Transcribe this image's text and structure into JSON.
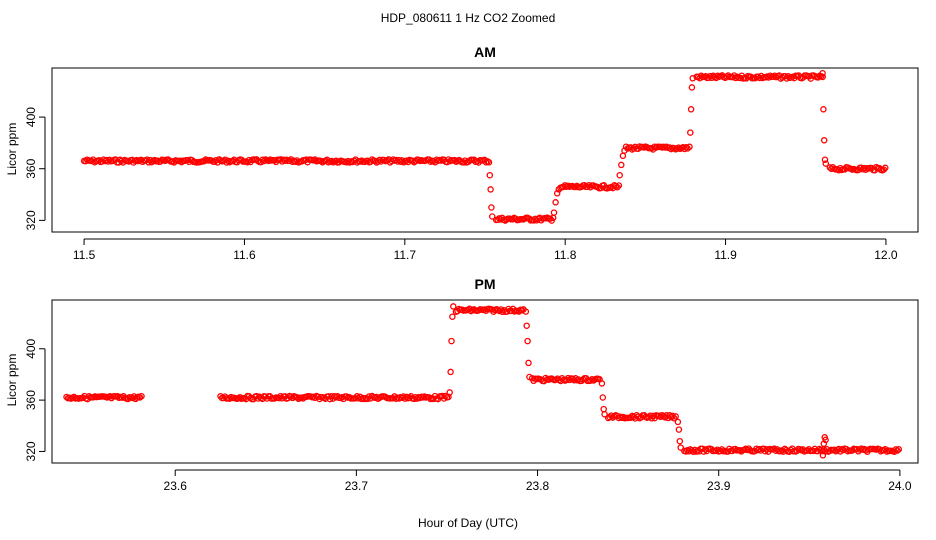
{
  "figure": {
    "title": "HDP_080611  1 Hz CO2 Zoomed",
    "xlabel": "Hour of Day (UTC)",
    "point_color": "#ff0000"
  },
  "chart_data": [
    {
      "type": "scatter",
      "title": "AM",
      "xlabel": "",
      "ylabel": "Licor ppm",
      "xlim": [
        11.48,
        12.02
      ],
      "ylim": [
        311,
        438
      ],
      "xticks": [
        "11.5",
        "11.6",
        "11.7",
        "11.8",
        "11.9",
        "12.0"
      ],
      "yticks": [
        "320",
        "360",
        "400"
      ],
      "grid": false,
      "series": [
        {
          "marker": "open-circle",
          "color": "#ff0000",
          "segments": [
            {
              "x": [
                11.5,
                11.752
              ],
              "y": 366
            },
            {
              "x": [
                11.757,
                11.792
              ],
              "y": 321
            },
            {
              "x": [
                11.797,
                11.833
              ],
              "y": 346
            },
            {
              "x": [
                11.838,
                11.877
              ],
              "y": 376
            },
            {
              "x": [
                11.882,
                11.961
              ],
              "y": 431
            },
            {
              "x": [
                11.965,
                12.0
              ],
              "y": 360
            }
          ],
          "transitions": [
            {
              "x": 11.7525,
              "y": 365
            },
            {
              "x": 11.753,
              "y": 355
            },
            {
              "x": 11.7535,
              "y": 344
            },
            {
              "x": 11.754,
              "y": 330
            },
            {
              "x": 11.7545,
              "y": 323
            },
            {
              "x": 11.7925,
              "y": 322
            },
            {
              "x": 11.793,
              "y": 326
            },
            {
              "x": 11.794,
              "y": 334
            },
            {
              "x": 11.795,
              "y": 341
            },
            {
              "x": 11.796,
              "y": 344
            },
            {
              "x": 11.8335,
              "y": 347
            },
            {
              "x": 11.834,
              "y": 355
            },
            {
              "x": 11.835,
              "y": 363
            },
            {
              "x": 11.836,
              "y": 370
            },
            {
              "x": 11.837,
              "y": 374
            },
            {
              "x": 11.8775,
              "y": 377
            },
            {
              "x": 11.878,
              "y": 388
            },
            {
              "x": 11.8785,
              "y": 406
            },
            {
              "x": 11.879,
              "y": 423
            },
            {
              "x": 11.8795,
              "y": 430
            },
            {
              "x": 11.9605,
              "y": 434
            },
            {
              "x": 11.961,
              "y": 406
            },
            {
              "x": 11.9615,
              "y": 382
            },
            {
              "x": 11.962,
              "y": 367
            },
            {
              "x": 11.9625,
              "y": 364
            }
          ]
        }
      ]
    },
    {
      "type": "scatter",
      "title": "PM",
      "xlabel": "",
      "ylabel": "Licor ppm",
      "xlim": [
        23.532,
        24.01
      ],
      "ylim": [
        311,
        438
      ],
      "xticks": [
        "23.6",
        "23.7",
        "23.8",
        "23.9",
        "24.0"
      ],
      "yticks": [
        "320",
        "360",
        "400"
      ],
      "grid": false,
      "series": [
        {
          "marker": "open-circle",
          "color": "#ff0000",
          "segments": [
            {
              "x": [
                23.54,
                23.582
              ],
              "y": 362
            },
            {
              "x": [
                23.625,
                23.751
              ],
              "y": 362
            },
            {
              "x": [
                23.755,
                23.793
              ],
              "y": 430
            },
            {
              "x": [
                23.797,
                23.835
              ],
              "y": 376
            },
            {
              "x": [
                23.839,
                23.877
              ],
              "y": 347
            },
            {
              "x": [
                23.881,
                24.0
              ],
              "y": 321
            }
          ],
          "transitions": [
            {
              "x": 23.7515,
              "y": 366
            },
            {
              "x": 23.752,
              "y": 382
            },
            {
              "x": 23.7525,
              "y": 406
            },
            {
              "x": 23.753,
              "y": 425
            },
            {
              "x": 23.7535,
              "y": 433
            },
            {
              "x": 23.7935,
              "y": 429
            },
            {
              "x": 23.794,
              "y": 418
            },
            {
              "x": 23.7945,
              "y": 406
            },
            {
              "x": 23.795,
              "y": 389
            },
            {
              "x": 23.7955,
              "y": 378
            },
            {
              "x": 23.8355,
              "y": 373
            },
            {
              "x": 23.836,
              "y": 362
            },
            {
              "x": 23.8365,
              "y": 353
            },
            {
              "x": 23.837,
              "y": 349
            },
            {
              "x": 23.8775,
              "y": 343
            },
            {
              "x": 23.878,
              "y": 337
            },
            {
              "x": 23.8785,
              "y": 328
            },
            {
              "x": 23.879,
              "y": 323
            },
            {
              "x": 23.9575,
              "y": 317
            },
            {
              "x": 23.958,
              "y": 326
            },
            {
              "x": 23.9585,
              "y": 331
            },
            {
              "x": 23.959,
              "y": 329
            }
          ]
        }
      ]
    }
  ]
}
